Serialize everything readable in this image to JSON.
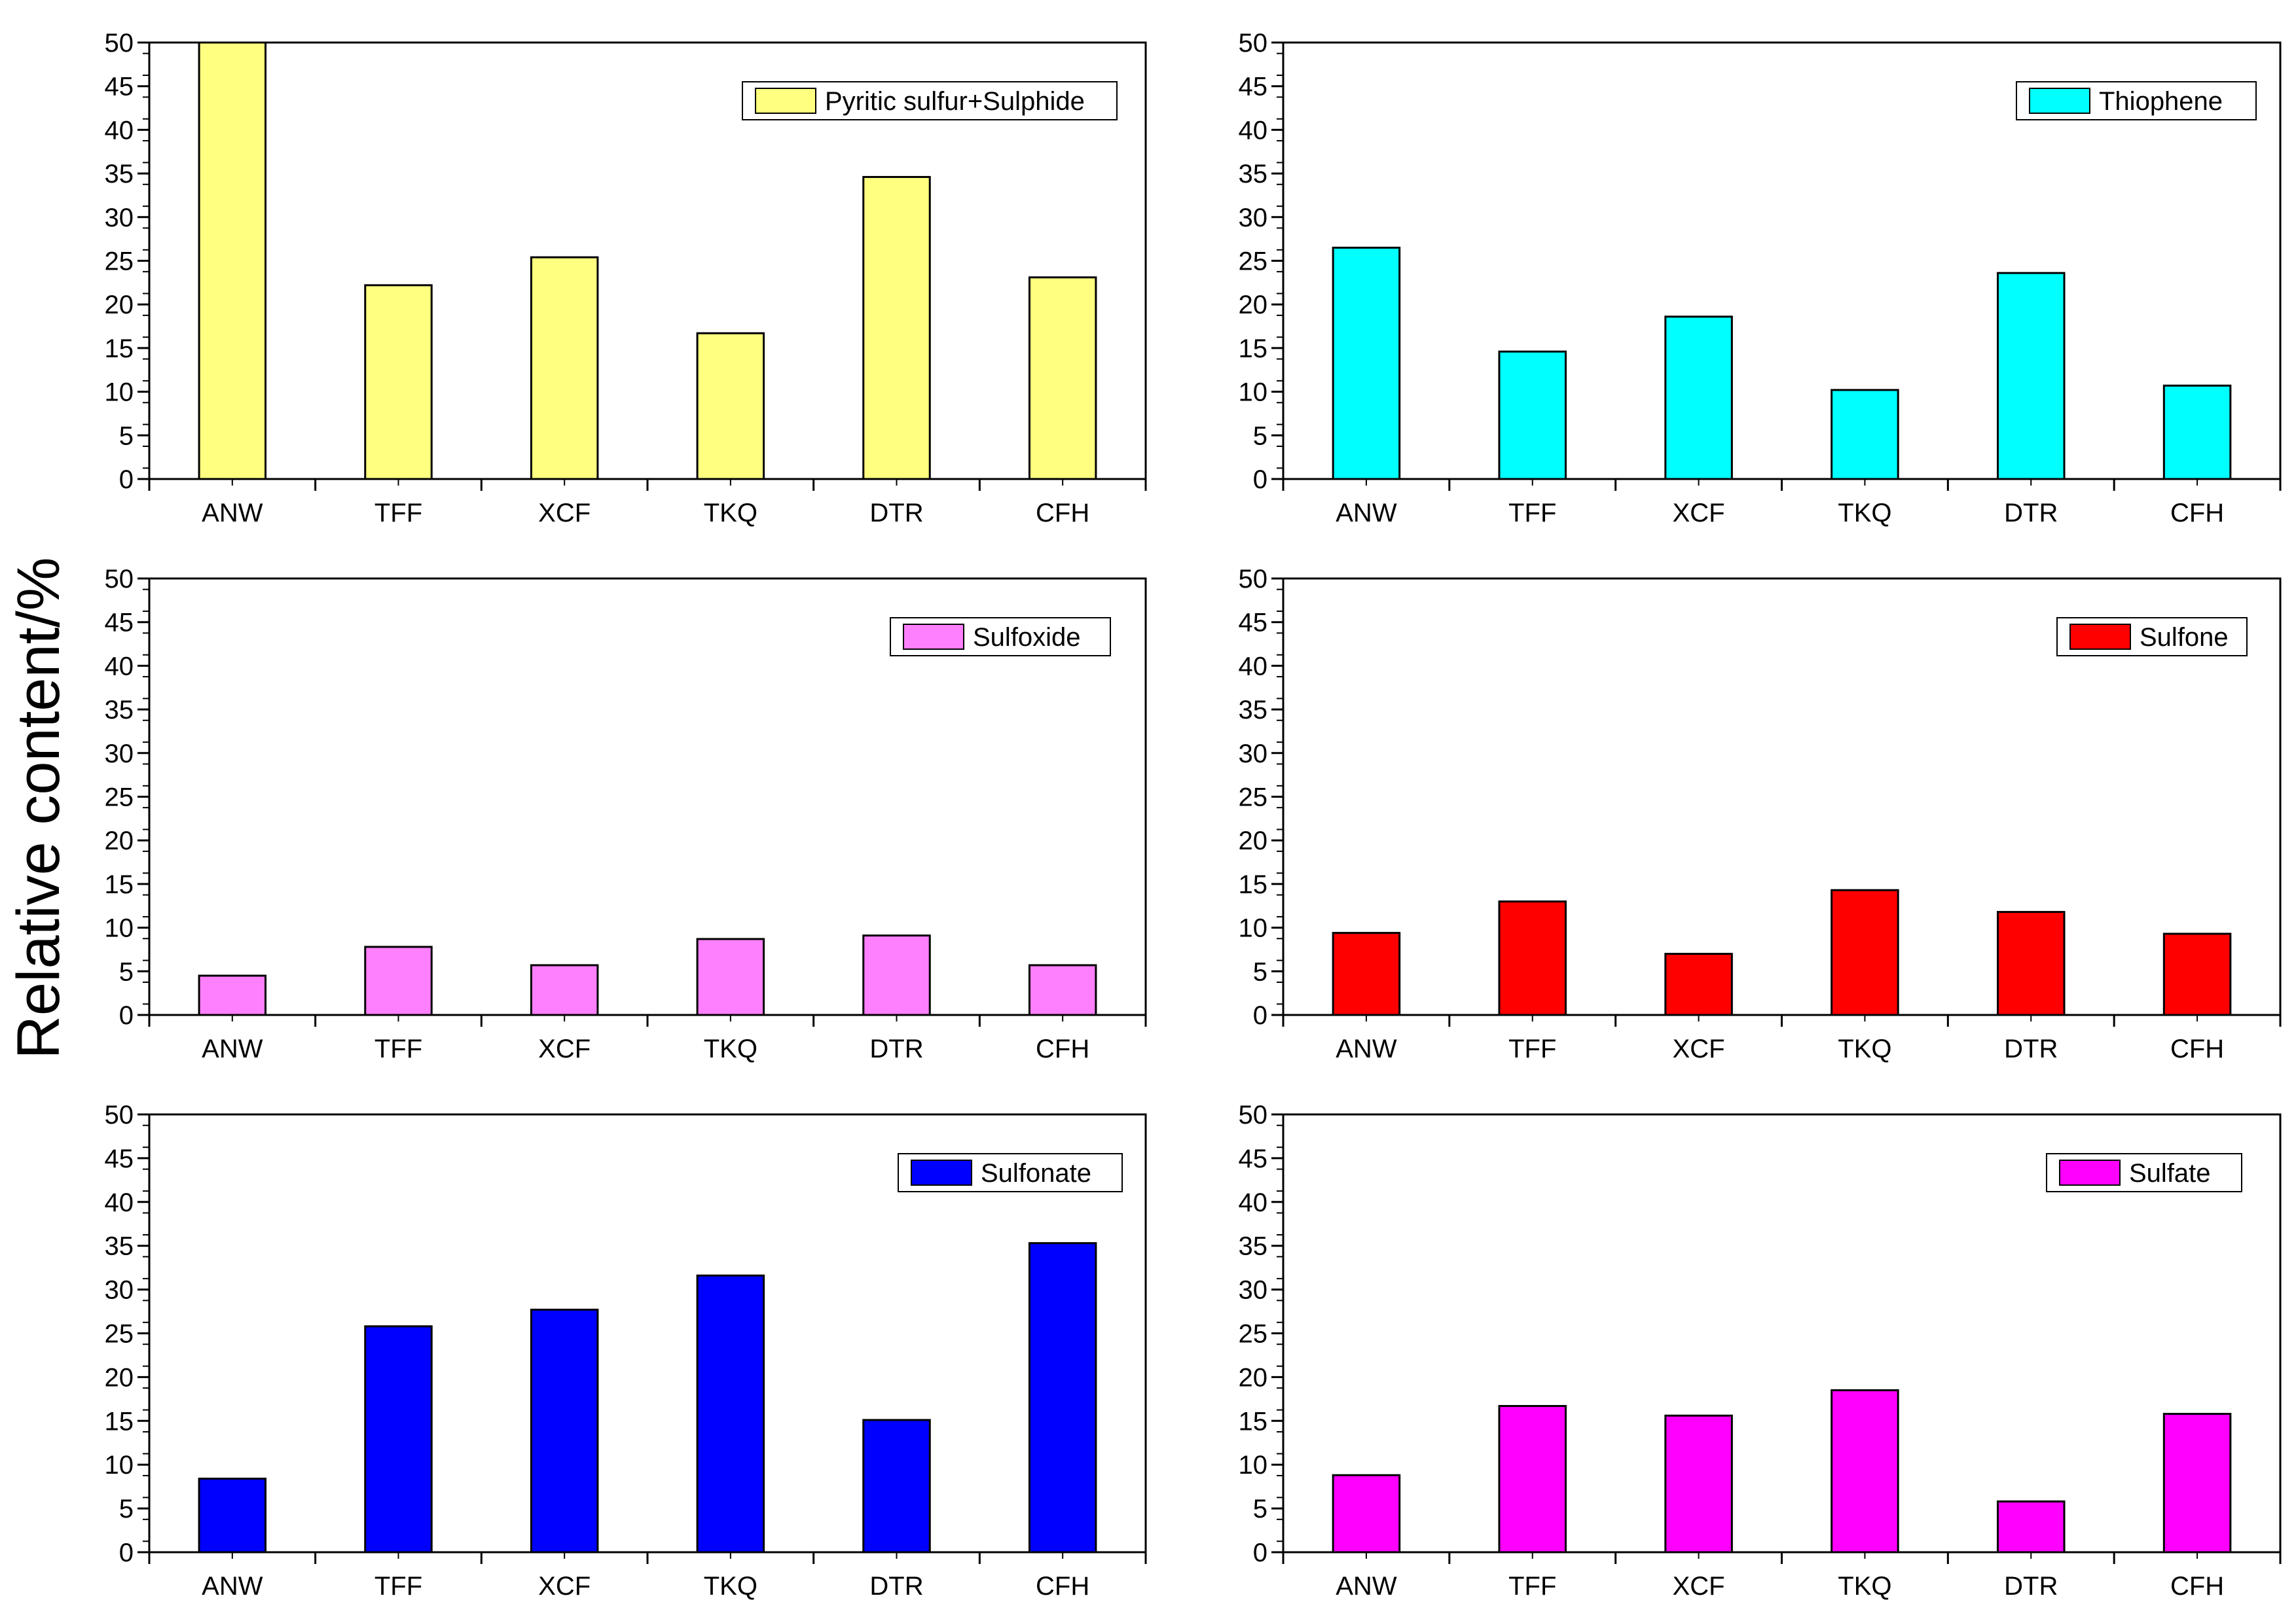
{
  "figure": {
    "ylabel": "Relative content/%"
  },
  "chart_data": [
    {
      "type": "bar",
      "title": "",
      "xlabel": "",
      "ylabel": "Relative content/%",
      "categories": [
        "ANW",
        "TFF",
        "XCF",
        "TKQ",
        "DTR",
        "CFH"
      ],
      "series": [
        {
          "name": "Pyritic sulfur+Sulphide",
          "values": [
            50.0,
            22.2,
            25.4,
            16.7,
            34.6,
            23.1
          ]
        }
      ],
      "color": "#FFFF80",
      "ylim": [
        0,
        50
      ],
      "yticks": [
        0,
        5,
        10,
        15,
        20,
        25,
        30,
        35,
        40,
        45,
        50
      ],
      "legend_position": "top-right"
    },
    {
      "type": "bar",
      "title": "",
      "xlabel": "",
      "ylabel": "Relative content/%",
      "categories": [
        "ANW",
        "TFF",
        "XCF",
        "TKQ",
        "DTR",
        "CFH"
      ],
      "series": [
        {
          "name": "Thiophene",
          "values": [
            26.5,
            14.6,
            18.6,
            10.2,
            23.6,
            10.7
          ]
        }
      ],
      "color": "#00FFFF",
      "ylim": [
        0,
        50
      ],
      "yticks": [
        0,
        5,
        10,
        15,
        20,
        25,
        30,
        35,
        40,
        45,
        50
      ],
      "legend_position": "top-right"
    },
    {
      "type": "bar",
      "title": "",
      "xlabel": "",
      "ylabel": "Relative content/%",
      "categories": [
        "ANW",
        "TFF",
        "XCF",
        "TKQ",
        "DTR",
        "CFH"
      ],
      "series": [
        {
          "name": "Sulfoxide",
          "values": [
            4.5,
            7.8,
            5.7,
            8.7,
            9.1,
            5.7
          ]
        }
      ],
      "color": "#FF80FF",
      "ylim": [
        0,
        50
      ],
      "yticks": [
        0,
        5,
        10,
        15,
        20,
        25,
        30,
        35,
        40,
        45,
        50
      ],
      "legend_position": "top-right"
    },
    {
      "type": "bar",
      "title": "",
      "xlabel": "",
      "ylabel": "Relative content/%",
      "categories": [
        "ANW",
        "TFF",
        "XCF",
        "TKQ",
        "DTR",
        "CFH"
      ],
      "series": [
        {
          "name": "Sulfone",
          "values": [
            9.4,
            13.0,
            7.0,
            14.3,
            11.8,
            9.3
          ]
        }
      ],
      "color": "#FF0000",
      "ylim": [
        0,
        50
      ],
      "yticks": [
        0,
        5,
        10,
        15,
        20,
        25,
        30,
        35,
        40,
        45,
        50
      ],
      "legend_position": "top-right"
    },
    {
      "type": "bar",
      "title": "",
      "xlabel": "",
      "ylabel": "Relative content/%",
      "categories": [
        "ANW",
        "TFF",
        "XCF",
        "TKQ",
        "DTR",
        "CFH"
      ],
      "series": [
        {
          "name": "Sulfonate",
          "values": [
            8.4,
            25.8,
            27.7,
            31.6,
            15.1,
            35.3
          ]
        }
      ],
      "color": "#0000FF",
      "ylim": [
        0,
        50
      ],
      "yticks": [
        0,
        5,
        10,
        15,
        20,
        25,
        30,
        35,
        40,
        45,
        50
      ],
      "legend_position": "top-right"
    },
    {
      "type": "bar",
      "title": "",
      "xlabel": "",
      "ylabel": "Relative content/%",
      "categories": [
        "ANW",
        "TFF",
        "XCF",
        "TKQ",
        "DTR",
        "CFH"
      ],
      "series": [
        {
          "name": "Sulfate",
          "values": [
            8.8,
            16.7,
            15.6,
            18.5,
            5.8,
            15.8
          ]
        }
      ],
      "color": "#FF00FF",
      "ylim": [
        0,
        50
      ],
      "yticks": [
        0,
        5,
        10,
        15,
        20,
        25,
        30,
        35,
        40,
        45,
        50
      ],
      "legend_position": "top-right"
    }
  ]
}
